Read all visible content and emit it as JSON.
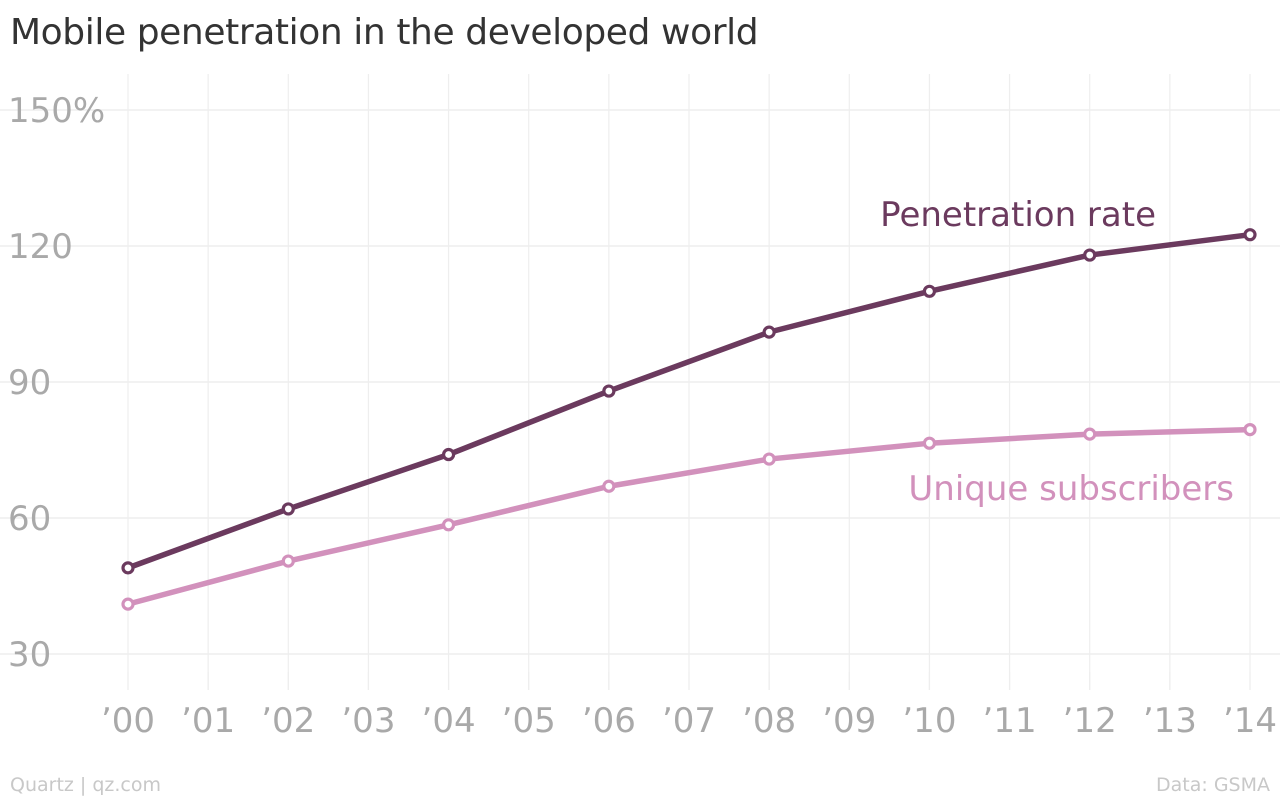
{
  "title": "Mobile penetration in the developed world",
  "source_left": "Quartz | qz.com",
  "source_right": "Data: GSMA",
  "chart_data": {
    "type": "line",
    "title": "Mobile penetration in the developed world",
    "xlabel": "",
    "ylabel": "",
    "x": [
      "’00",
      "’01",
      "’02",
      "’03",
      "’04",
      "’05",
      "’06",
      "’07",
      "’08",
      "’09",
      "’10",
      "’11",
      "’12",
      "’13",
      "’14"
    ],
    "x_values": [
      2000,
      2001,
      2002,
      2003,
      2004,
      2005,
      2006,
      2007,
      2008,
      2009,
      2010,
      2011,
      2012,
      2013,
      2014
    ],
    "y_ticks": [
      "30",
      "60",
      "90",
      "120",
      "150%"
    ],
    "y_tick_values": [
      30,
      60,
      90,
      120,
      150
    ],
    "ylim": [
      30,
      150
    ],
    "grid": true,
    "series": [
      {
        "name": "Penetration rate",
        "color": "#6b3a5e",
        "x": [
          2000,
          2002,
          2004,
          2006,
          2008,
          2010,
          2012,
          2014
        ],
        "values": [
          49,
          62,
          74,
          88,
          101,
          110,
          118,
          122.5
        ]
      },
      {
        "name": "Unique subscribers",
        "color": "#d291bc",
        "x": [
          2000,
          2002,
          2004,
          2006,
          2008,
          2010,
          2012,
          2014
        ],
        "values": [
          41,
          50.5,
          58.5,
          67,
          73,
          76.5,
          78.5,
          79.5
        ]
      }
    ]
  }
}
